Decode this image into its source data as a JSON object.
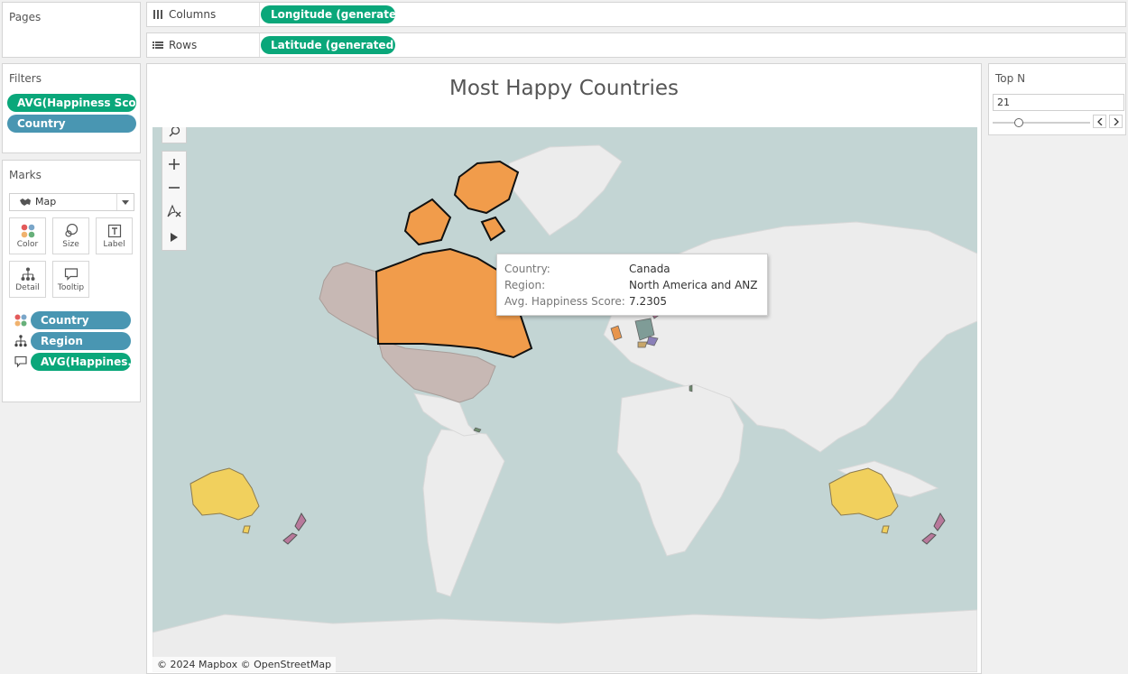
{
  "pages": {
    "title": "Pages"
  },
  "columns": {
    "label": "Columns",
    "pill": "Longitude (generated)"
  },
  "rows": {
    "label": "Rows",
    "pill": "Latitude (generated)"
  },
  "filters": {
    "title": "Filters",
    "items": [
      "AVG(Happiness Sco..",
      "Country"
    ]
  },
  "marks": {
    "title": "Marks",
    "type": "Map",
    "buttons": [
      "Color",
      "Size",
      "Label",
      "Detail",
      "Tooltip"
    ],
    "fields": [
      {
        "icon": "color-icon",
        "label": "Country"
      },
      {
        "icon": "detail-icon",
        "label": "Region"
      },
      {
        "icon": "tooltip-icon",
        "label": "AVG(Happines.."
      }
    ]
  },
  "view": {
    "title": "Most Happy Countries",
    "attribution": "© 2024 Mapbox © OpenStreetMap"
  },
  "tooltip": {
    "rows": [
      {
        "key": "Country:",
        "value": "Canada"
      },
      {
        "key": "Region:",
        "value": "North America and ANZ"
      },
      {
        "key": "Avg. Happiness Score:",
        "value": "7.2305"
      }
    ]
  },
  "topn": {
    "title": "Top N",
    "value": "21",
    "slider_fraction": 0.22
  },
  "colors": {
    "green_pill": "#0aa77a",
    "blue_pill": "#4996b2",
    "ocean": "#c3d5d4",
    "land": "#ececec",
    "canada": "#f19c4b",
    "usa": "#c7b8b4",
    "australia": "#f1d05d",
    "new_zealand": "#b8799b"
  }
}
